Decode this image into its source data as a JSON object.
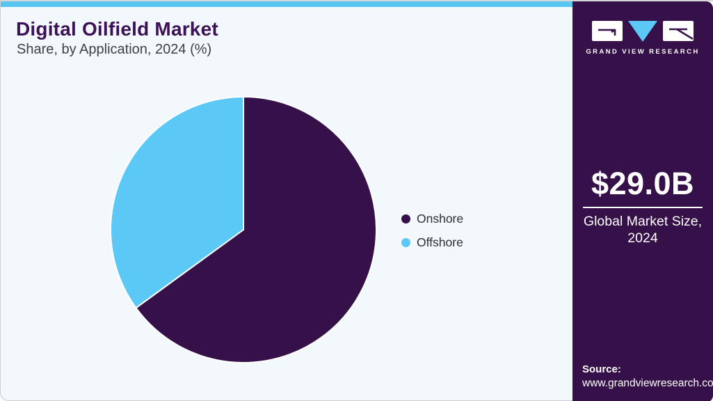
{
  "header": {
    "title": "Digital Oilfield Market",
    "subtitle": "Share, by Application, 2024 (%)"
  },
  "chart_data": {
    "type": "pie",
    "title": "Digital Oilfield Market Share, by Application, 2024 (%)",
    "categories": [
      "Onshore",
      "Offshore"
    ],
    "values": [
      65,
      35
    ],
    "unit": "%",
    "colors": [
      "#351049",
      "#5bc8f5"
    ],
    "start_angle_deg": 0,
    "direction": "clockwise",
    "legend_position": "right",
    "separator_color": "#ffffff"
  },
  "legend": {
    "items": [
      {
        "label": "Onshore",
        "color": "#351049"
      },
      {
        "label": "Offshore",
        "color": "#5bc8f5"
      }
    ]
  },
  "sidebar": {
    "logo": {
      "brand": "GRAND VIEW RESEARCH"
    },
    "market_size_value": "$29.0B",
    "market_size_label_line1": "Global Market Size,",
    "market_size_label_line2": "2024",
    "source_label": "Source:",
    "source_url": "www.grandviewresearch.com"
  },
  "colors": {
    "accent_purple": "#351049",
    "accent_blue": "#5bc8f5",
    "topbar_blue": "#59c5f1",
    "panel_bg": "#f3f8fc",
    "title_purple": "#3d1157",
    "subtitle_gray": "#3f3f46"
  }
}
